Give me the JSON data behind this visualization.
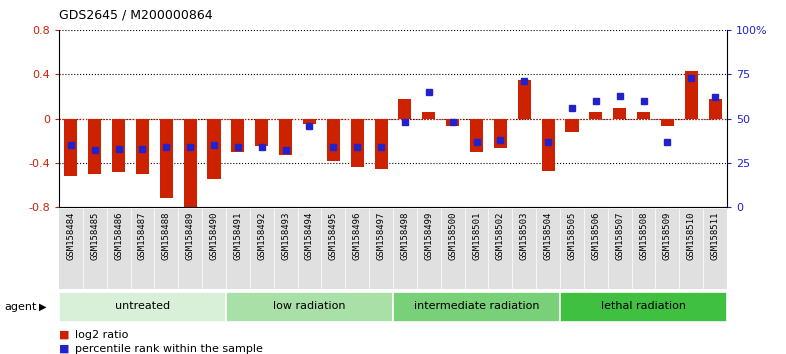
{
  "title": "GDS2645 / M200000864",
  "samples": [
    "GSM158484",
    "GSM158485",
    "GSM158486",
    "GSM158487",
    "GSM158488",
    "GSM158489",
    "GSM158490",
    "GSM158491",
    "GSM158492",
    "GSM158493",
    "GSM158494",
    "GSM158495",
    "GSM158496",
    "GSM158497",
    "GSM158498",
    "GSM158499",
    "GSM158500",
    "GSM158501",
    "GSM158502",
    "GSM158503",
    "GSM158504",
    "GSM158505",
    "GSM158506",
    "GSM158507",
    "GSM158508",
    "GSM158509",
    "GSM158510",
    "GSM158511"
  ],
  "log2_ratio": [
    -0.52,
    -0.5,
    -0.48,
    -0.5,
    -0.72,
    -0.82,
    -0.55,
    -0.3,
    -0.25,
    -0.33,
    -0.05,
    -0.38,
    -0.44,
    -0.46,
    0.18,
    0.06,
    -0.07,
    -0.3,
    -0.27,
    0.35,
    -0.47,
    -0.12,
    0.06,
    0.1,
    0.06,
    -0.07,
    0.43,
    0.18
  ],
  "percentile_rank": [
    35,
    32,
    33,
    33,
    34,
    34,
    35,
    34,
    34,
    32,
    46,
    34,
    34,
    34,
    48,
    65,
    48,
    37,
    38,
    71,
    37,
    56,
    60,
    63,
    60,
    37,
    73,
    62
  ],
  "groups": [
    {
      "label": "untreated",
      "start": 0,
      "end": 7,
      "color": "#d8f0d8"
    },
    {
      "label": "low radiation",
      "start": 7,
      "end": 14,
      "color": "#a8e0a8"
    },
    {
      "label": "intermediate radiation",
      "start": 14,
      "end": 21,
      "color": "#78d078"
    },
    {
      "label": "lethal radiation",
      "start": 21,
      "end": 28,
      "color": "#40c040"
    }
  ],
  "bar_color": "#cc2200",
  "dot_color": "#2222cc",
  "ylim": [
    -0.8,
    0.8
  ],
  "yticks_left": [
    -0.8,
    -0.4,
    0.0,
    0.4,
    0.8
  ],
  "yticks_right": [
    0,
    25,
    50,
    75,
    100
  ],
  "ytick_labels_right": [
    "0",
    "25",
    "50",
    "75",
    "100%"
  ],
  "background_color": "#ffffff",
  "plot_bg": "#ffffff",
  "xtick_bg": "#e0e0e0",
  "legend_red": "log2 ratio",
  "legend_blue": "percentile rank within the sample",
  "bar_width": 0.55
}
